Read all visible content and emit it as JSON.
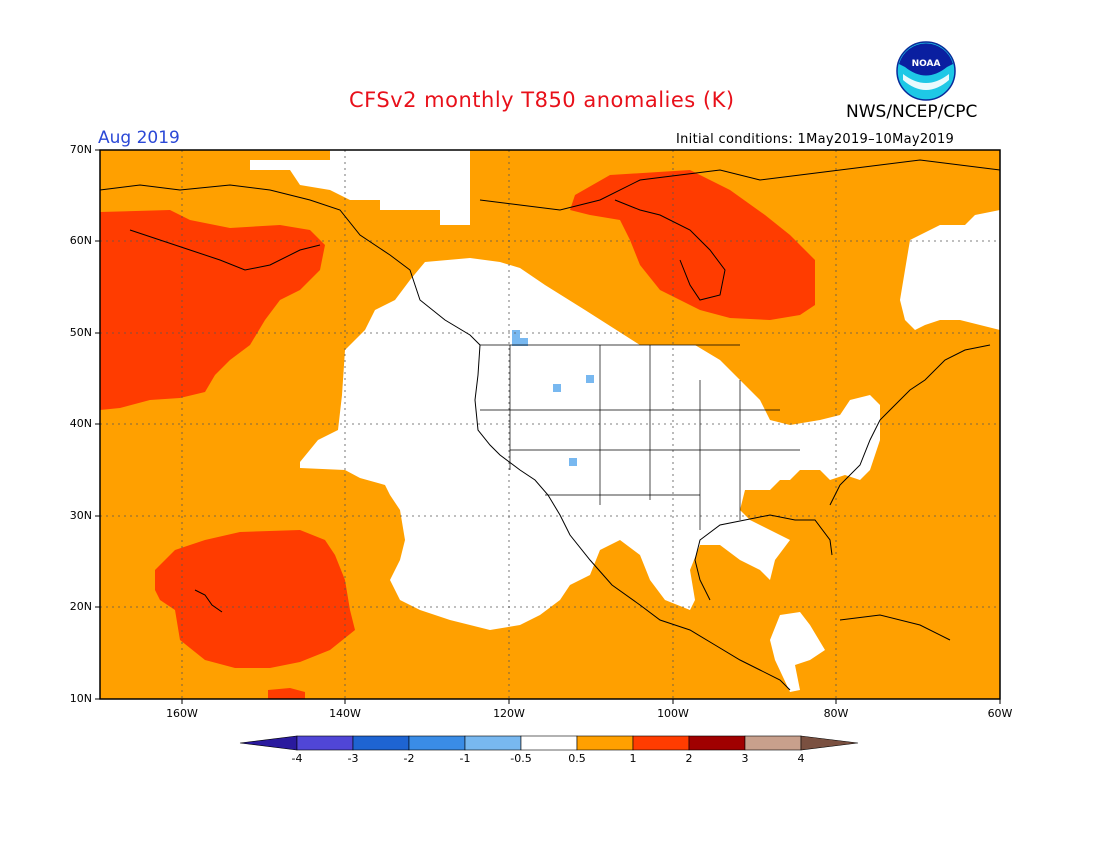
{
  "header": {
    "title": "CFSv2 monthly T850 anomalies (K)",
    "org": "NWS/NCEP/CPC",
    "period": "Aug 2019",
    "initial_conditions": "Initial conditions: 1May2019–10May2019",
    "logo_text": "NOAA"
  },
  "map": {
    "lat_labels": [
      "70N",
      "60N",
      "50N",
      "40N",
      "30N",
      "20N",
      "10N"
    ],
    "lon_labels": [
      "160W",
      "140W",
      "120W",
      "100W",
      "80W",
      "60W"
    ],
    "extent": {
      "lon_min": -170,
      "lon_max": -60,
      "lat_min": 10,
      "lat_max": 70
    },
    "projection": "equirectangular",
    "gridlines": "dotted"
  },
  "colorbar": {
    "labels": [
      "-4",
      "-3",
      "-2",
      "-1",
      "-0.5",
      "0.5",
      "1",
      "2",
      "3",
      "4"
    ],
    "colors": [
      "#2a1a9e",
      "#5046d6",
      "#1e64d2",
      "#3a8ce6",
      "#78b8f0",
      "#ffffff",
      "#ffa000",
      "#ff3c00",
      "#a00000",
      "#c8a08c",
      "#7a5040"
    ]
  },
  "legend_colors": {
    "anomaly_0_5_to_1": "#ffa000",
    "anomaly_1_to_2": "#ff3c00",
    "anomaly_neg_1_to_neg_0_5": "#78b8f0"
  }
}
